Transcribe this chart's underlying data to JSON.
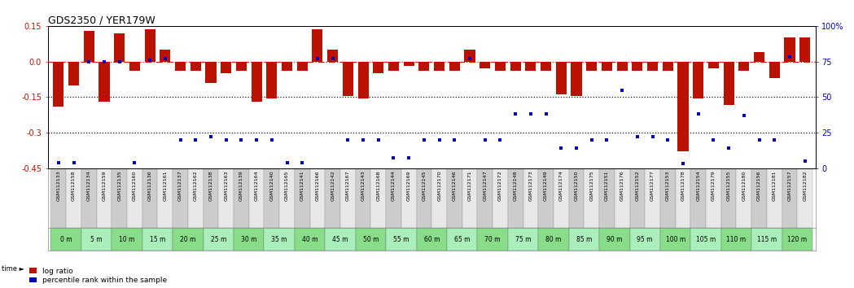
{
  "title": "GDS2350 / YER179W",
  "gsm_labels": [
    "GSM112133",
    "GSM112158",
    "GSM112134",
    "GSM112159",
    "GSM112135",
    "GSM112160",
    "GSM112136",
    "GSM112161",
    "GSM112137",
    "GSM112162",
    "GSM112138",
    "GSM112163",
    "GSM112139",
    "GSM112164",
    "GSM112140",
    "GSM112165",
    "GSM112141",
    "GSM112166",
    "GSM112142",
    "GSM112167",
    "GSM112143",
    "GSM112168",
    "GSM112144",
    "GSM112169",
    "GSM112145",
    "GSM112170",
    "GSM112146",
    "GSM112171",
    "GSM112147",
    "GSM112172",
    "GSM112148",
    "GSM112173",
    "GSM112149",
    "GSM112174",
    "GSM112150",
    "GSM112175",
    "GSM112151",
    "GSM112176",
    "GSM112152",
    "GSM112177",
    "GSM112153",
    "GSM112178",
    "GSM112154",
    "GSM112179",
    "GSM112155",
    "GSM112180",
    "GSM112156",
    "GSM112181",
    "GSM112157",
    "GSM112182"
  ],
  "time_labels": [
    "0 m",
    "5 m",
    "10 m",
    "15 m",
    "20 m",
    "25 m",
    "30 m",
    "35 m",
    "40 m",
    "45 m",
    "50 m",
    "55 m",
    "60 m",
    "65 m",
    "70 m",
    "75 m",
    "80 m",
    "85 m",
    "90 m",
    "95 m",
    "100 m",
    "105 m",
    "110 m",
    "115 m",
    "120 m"
  ],
  "log_ratio": [
    -0.19,
    -0.1,
    0.13,
    -0.17,
    0.12,
    -0.04,
    0.135,
    0.05,
    -0.04,
    -0.04,
    -0.09,
    -0.05,
    -0.04,
    -0.17,
    -0.155,
    -0.04,
    -0.04,
    0.135,
    0.05,
    -0.145,
    -0.155,
    -0.05,
    -0.04,
    -0.02,
    -0.04,
    -0.04,
    -0.04,
    0.05,
    -0.03,
    -0.04,
    -0.04,
    -0.04,
    -0.04,
    -0.14,
    -0.145,
    -0.04,
    -0.04,
    -0.04,
    -0.04,
    -0.04,
    -0.04,
    -0.38,
    -0.155,
    -0.03,
    -0.185,
    -0.04,
    0.04,
    -0.07,
    0.1,
    0.1
  ],
  "percentile_rank": [
    4,
    4,
    75,
    75,
    75,
    4,
    76,
    77,
    20,
    20,
    22,
    20,
    20,
    20,
    20,
    4,
    4,
    77,
    77,
    20,
    20,
    20,
    7,
    7,
    20,
    20,
    20,
    77,
    20,
    20,
    38,
    38,
    38,
    14,
    14,
    20,
    20,
    55,
    22,
    22,
    20,
    3,
    38,
    20,
    14,
    37,
    20,
    20,
    78,
    5
  ],
  "bar_color": "#bb1100",
  "scatter_color": "#0000bb",
  "bg_color": "#ffffff",
  "ylim_left": [
    -0.45,
    0.15
  ],
  "ylim_right": [
    0,
    100
  ],
  "left_ticks": [
    0.15,
    0.0,
    -0.15,
    -0.3,
    -0.45
  ],
  "right_ticks": [
    0,
    25,
    50,
    75,
    100
  ],
  "right_tick_labels": [
    "0",
    "25",
    "50",
    "75",
    "100%"
  ],
  "hline_y": [
    0.0,
    -0.15,
    -0.3
  ],
  "hline_styles": [
    "dashdot",
    "dotted",
    "dotted"
  ],
  "hline_colors": [
    "#cc2200",
    "#111111",
    "#111111"
  ],
  "legend_log_label": "log ratio",
  "legend_pct_label": "percentile rank within the sample",
  "time_row_color_a": "#88dd88",
  "time_row_color_b": "#aaeebb",
  "gsm_row_color_a": "#cccccc",
  "gsm_row_color_b": "#e8e8e8",
  "title_fontsize": 9,
  "tick_label_fontsize": 7,
  "gsm_fontsize": 4.5,
  "time_fontsize": 5.5
}
